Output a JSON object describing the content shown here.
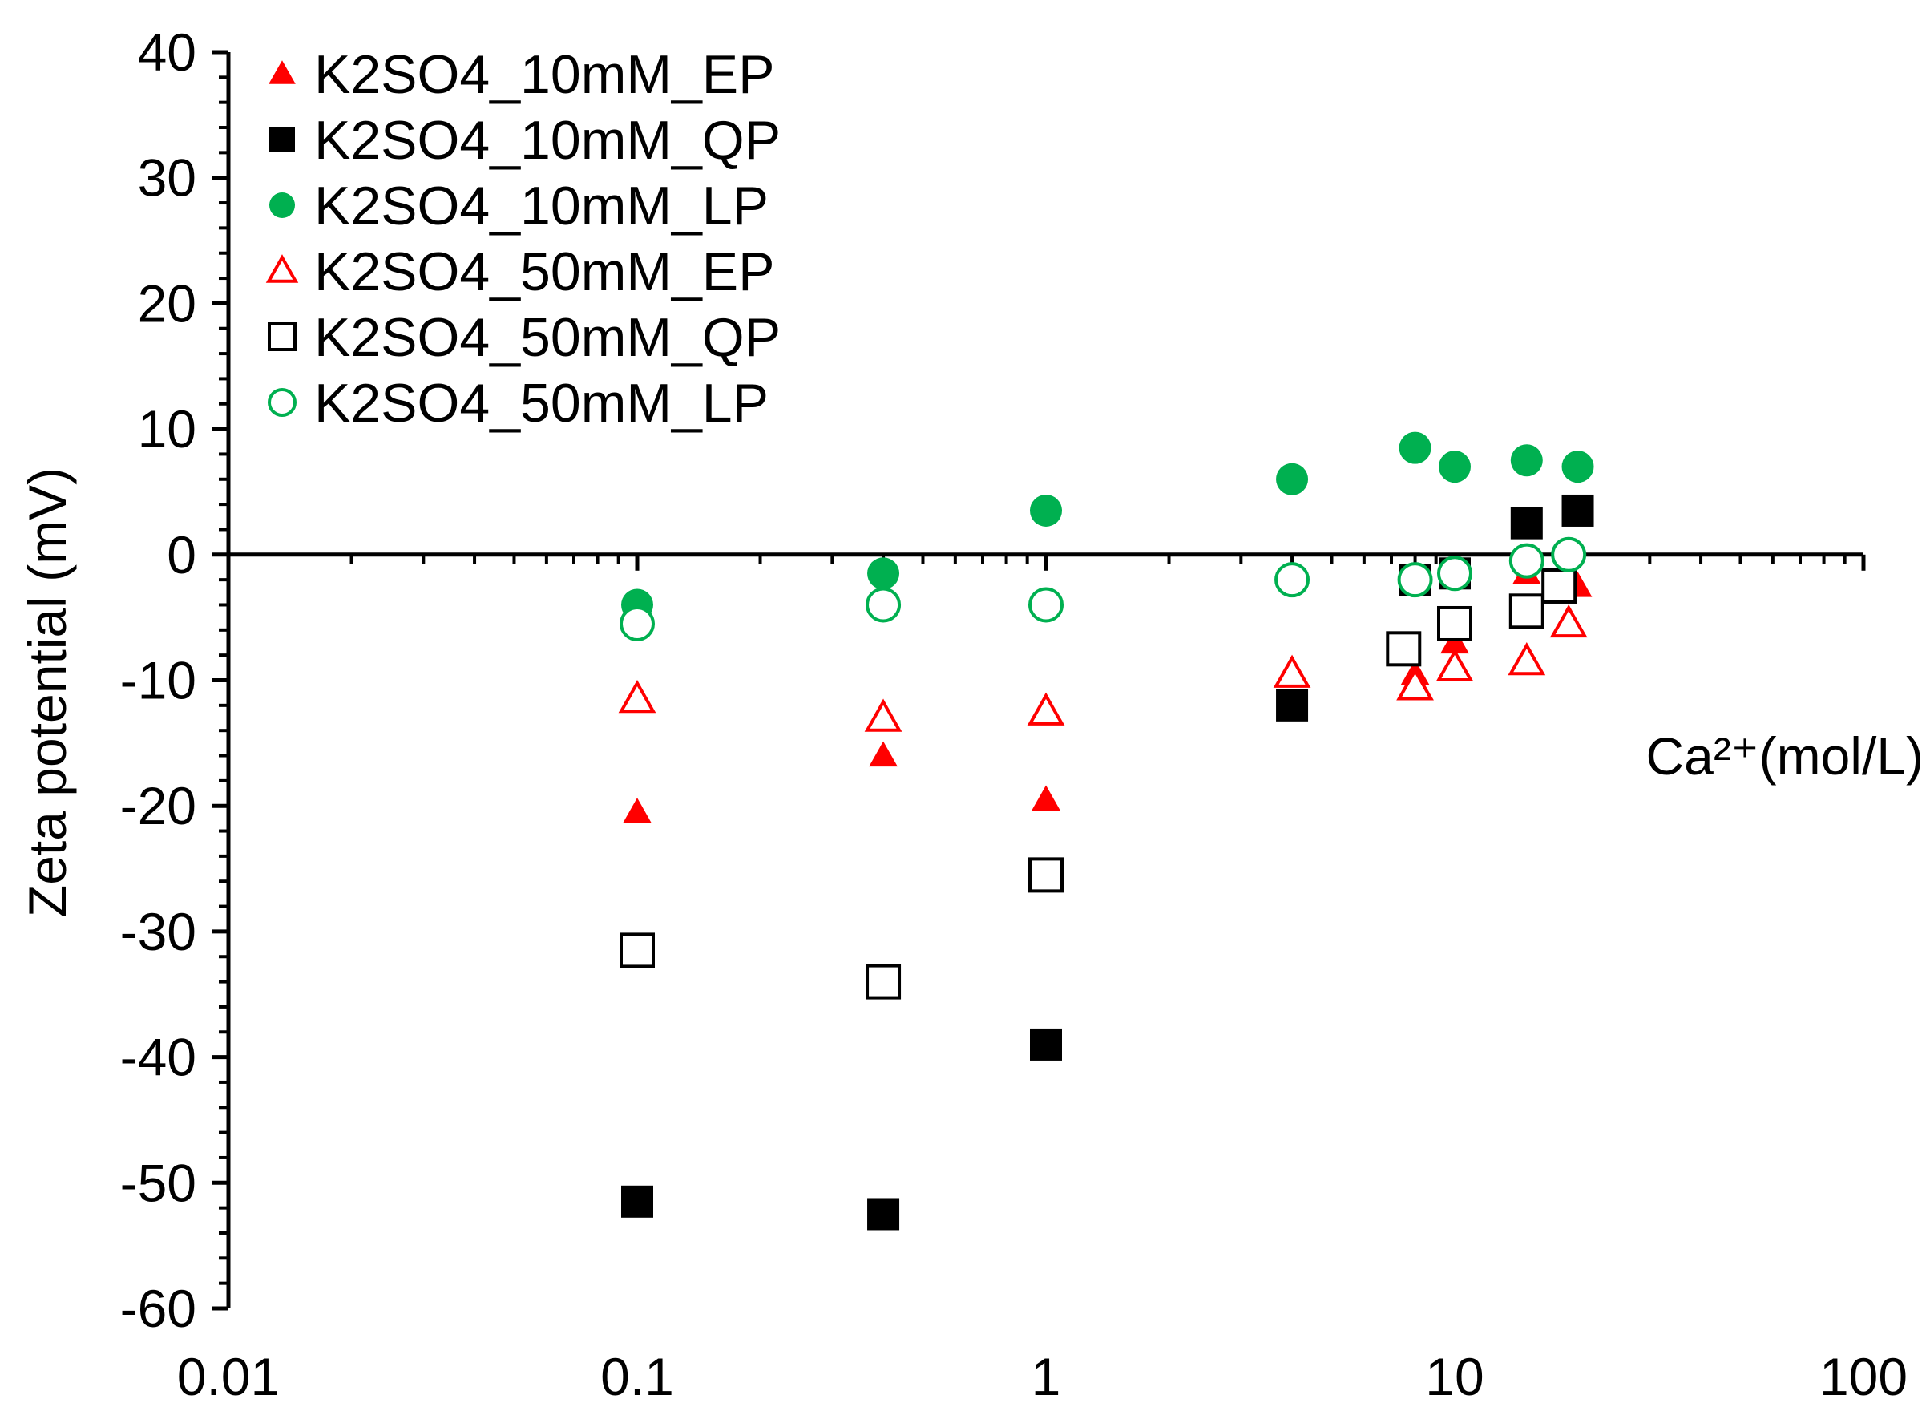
{
  "chart_data": {
    "type": "scatter",
    "title": "",
    "xlabel": "Ca²⁺(mol/L)",
    "ylabel": "Zeta potential (mV)",
    "xscale": "log",
    "xlim": [
      0.01,
      100
    ],
    "ylim": [
      -60,
      40
    ],
    "x_ticks": [
      "0.01",
      "0.1",
      "1",
      "10",
      "100"
    ],
    "y_ticks": [
      "40",
      "30",
      "20",
      "10",
      "0",
      "-10",
      "-20",
      "-30",
      "-40",
      "-50",
      "-60"
    ],
    "legend_position": "top-left",
    "series": [
      {
        "name": "K2SO4_10mM_EP",
        "marker": "triangle",
        "filled": true,
        "color": "#ff0000",
        "points": [
          {
            "x": 0.1,
            "y": -20.5
          },
          {
            "x": 0.4,
            "y": -16
          },
          {
            "x": 1,
            "y": -19.5
          },
          {
            "x": 8,
            "y": -9.5
          },
          {
            "x": 10,
            "y": -7
          },
          {
            "x": 15,
            "y": -1.5
          },
          {
            "x": 20,
            "y": -2.5
          }
        ]
      },
      {
        "name": "K2SO4_10mM_QP",
        "marker": "square",
        "filled": true,
        "color": "#000000",
        "points": [
          {
            "x": 0.1,
            "y": -51.5
          },
          {
            "x": 0.4,
            "y": -52.5
          },
          {
            "x": 1,
            "y": -39
          },
          {
            "x": 4,
            "y": -12
          },
          {
            "x": 8,
            "y": -2
          },
          {
            "x": 10,
            "y": -1.5
          },
          {
            "x": 15,
            "y": 2.5
          },
          {
            "x": 20,
            "y": 3.5
          }
        ]
      },
      {
        "name": "K2SO4_10mM_LP",
        "marker": "circle",
        "filled": true,
        "color": "#00b050",
        "points": [
          {
            "x": 0.1,
            "y": -4
          },
          {
            "x": 0.4,
            "y": -1.5
          },
          {
            "x": 1,
            "y": 3.5
          },
          {
            "x": 4,
            "y": 6
          },
          {
            "x": 8,
            "y": 8.5
          },
          {
            "x": 10,
            "y": 7
          },
          {
            "x": 15,
            "y": 7.5
          },
          {
            "x": 20,
            "y": 7
          }
        ]
      },
      {
        "name": "K2SO4_50mM_EP",
        "marker": "triangle",
        "filled": false,
        "color": "#ff0000",
        "points": [
          {
            "x": 0.1,
            "y": -11.5
          },
          {
            "x": 0.4,
            "y": -13
          },
          {
            "x": 1,
            "y": -12.5
          },
          {
            "x": 4,
            "y": -9.5
          },
          {
            "x": 8,
            "y": -10.5
          },
          {
            "x": 10,
            "y": -9
          },
          {
            "x": 15,
            "y": -8.5
          },
          {
            "x": 19,
            "y": -5.5
          }
        ]
      },
      {
        "name": "K2SO4_50mM_QP",
        "marker": "square",
        "filled": false,
        "color": "#000000",
        "points": [
          {
            "x": 0.1,
            "y": -31.5
          },
          {
            "x": 0.4,
            "y": -34
          },
          {
            "x": 1,
            "y": -25.5
          },
          {
            "x": 7.5,
            "y": -7.5
          },
          {
            "x": 10,
            "y": -5.5
          },
          {
            "x": 15,
            "y": -4.5
          },
          {
            "x": 18,
            "y": -2.5
          }
        ]
      },
      {
        "name": "K2SO4_50mM_LP",
        "marker": "circle",
        "filled": false,
        "color": "#00b050",
        "points": [
          {
            "x": 0.1,
            "y": -5.5
          },
          {
            "x": 0.4,
            "y": -4
          },
          {
            "x": 1,
            "y": -4
          },
          {
            "x": 4,
            "y": -2
          },
          {
            "x": 8,
            "y": -2
          },
          {
            "x": 10,
            "y": -1.5
          },
          {
            "x": 15,
            "y": -0.5
          },
          {
            "x": 19,
            "y": 0
          }
        ]
      }
    ]
  }
}
